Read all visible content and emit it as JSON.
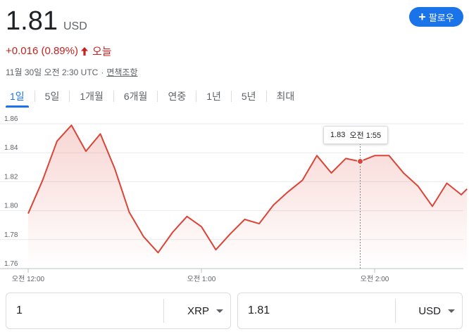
{
  "header": {
    "price": "1.81",
    "currency": "USD",
    "follow_label": "팔로우",
    "change": "+0.016 (0.89%)",
    "change_period": "오늘",
    "timestamp": "11월 30일 오전 2:30 UTC",
    "separator": "·",
    "disclaimer": "면책조항"
  },
  "tabs": [
    {
      "label": "1일",
      "active": true
    },
    {
      "label": "5일"
    },
    {
      "label": "1개월"
    },
    {
      "label": "6개월"
    },
    {
      "label": "연중"
    },
    {
      "label": "1년"
    },
    {
      "label": "5년"
    },
    {
      "label": "최대"
    }
  ],
  "tooltip": {
    "value": "1.83",
    "time": "오전 1:55"
  },
  "colors": {
    "line": "#db4437",
    "accent": "#1a73e8",
    "change": "#c5221f"
  },
  "chart_data": {
    "type": "line",
    "ylim": [
      1.76,
      1.86
    ],
    "y_ticks": [
      "1.86",
      "1.84",
      "1.82",
      "1.80",
      "1.78",
      "1.76"
    ],
    "x_ticks": [
      {
        "label": "오전 12:00",
        "x": 0
      },
      {
        "label": "오전 1:00",
        "x": 60
      },
      {
        "label": "오전 2:00",
        "x": 120
      }
    ],
    "x": [
      0,
      5,
      10,
      15,
      20,
      25,
      30,
      35,
      40,
      45,
      50,
      55,
      60,
      65,
      70,
      75,
      80,
      85,
      90,
      95,
      100,
      105,
      110,
      115,
      120,
      125,
      130,
      135,
      140,
      145,
      150,
      152
    ],
    "values": [
      1.798,
      1.821,
      1.848,
      1.859,
      1.841,
      1.853,
      1.829,
      1.799,
      1.782,
      1.771,
      1.785,
      1.796,
      1.789,
      1.773,
      1.784,
      1.794,
      1.791,
      1.804,
      1.813,
      1.821,
      1.838,
      1.826,
      1.836,
      1.834,
      1.838,
      1.838,
      1.826,
      1.817,
      1.803,
      1.819,
      1.811,
      1.815
    ],
    "highlight": {
      "x": 115,
      "value": 1.834
    }
  },
  "converter": {
    "from_amount": "1",
    "from_unit": "XRP",
    "to_amount": "1.81",
    "to_unit": "USD"
  }
}
